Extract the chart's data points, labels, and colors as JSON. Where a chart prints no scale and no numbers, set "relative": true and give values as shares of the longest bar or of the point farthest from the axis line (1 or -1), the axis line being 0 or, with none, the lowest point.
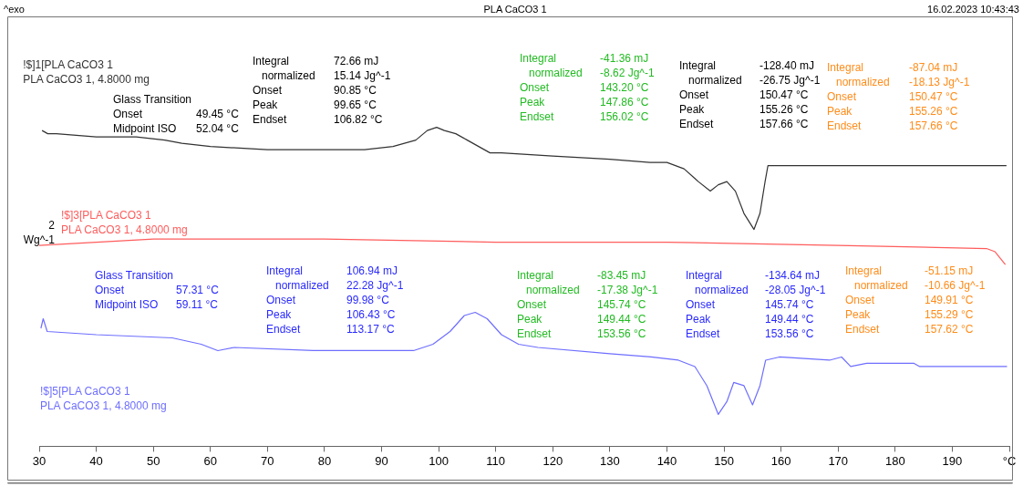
{
  "chart_data": {
    "type": "line",
    "title": "PLA CaCO3 1",
    "ylabel": "2 Wg^-1",
    "relative": true,
    "xlim": [
      30,
      200
    ],
    "xticks": [
      30,
      40,
      50,
      60,
      70,
      80,
      90,
      100,
      110,
      120,
      130,
      140,
      150,
      160,
      170,
      180,
      190,
      {
        "value": 200,
        "label": "°C"
      }
    ],
    "annotations": [
      "^exo",
      "16.02.2023 10:43:43",
      "Glass Transition",
      "Onset",
      "49.45 °C",
      "Midpoint ISO",
      "52.04 °C",
      "Integral",
      "72.66 mJ",
      "normalized",
      "15.14 Jg^-1",
      "Onset",
      "90.85 °C",
      "Peak",
      "99.65 °C",
      "Endset",
      "106.82 °C",
      "Integral",
      "-41.36 mJ",
      "normalized",
      "-8.62 Jg^-1",
      "Onset",
      "143.20 °C",
      "Peak",
      "147.86 °C",
      "Endset",
      "156.02 °C",
      "Integral",
      "-128.40 mJ",
      "normalized",
      "-26.75 Jg^-1",
      "Onset",
      "150.47 °C",
      "Peak",
      "155.26 °C",
      "Endset",
      "157.66 °C",
      "Integral",
      "-87.04 mJ",
      "normalized",
      "-18.13 Jg^-1",
      "Onset",
      "150.47 °C",
      "Peak",
      "155.26 °C",
      "Endset",
      "157.66 °C",
      "Glass Transition",
      "Onset",
      "57.31 °C",
      "Midpoint ISO",
      "59.11 °C",
      "Integral",
      "106.94 mJ",
      "normalized",
      "22.28 Jg^-1",
      "Onset",
      "99.98 °C",
      "Peak",
      "106.43 °C",
      "Endset",
      "113.17 °C",
      "Integral",
      "-83.45 mJ",
      "normalized",
      "-17.38 Jg^-1",
      "Onset",
      "145.74 °C",
      "Peak",
      "149.44 °C",
      "Endset",
      "153.56 °C",
      "Integral",
      "-134.64 mJ",
      "normalized",
      "-28.05 Jg^-1",
      "Onset",
      "145.74 °C",
      "Peak",
      "149.44 °C",
      "Endset",
      "153.56 °C",
      "Integral",
      "-51.15 mJ",
      "normalized",
      "-10.66 Jg^-1",
      "Onset",
      "149.91 °C",
      "Peak",
      "155.29 °C",
      "Endset",
      "157.62 °C"
    ],
    "series": [
      {
        "name": "!$]1[PLA CaCO3 1\nPLA CaCO3 1, 4.8000 mg",
        "color": "#333333",
        "x": [
          30.5,
          31.5,
          33,
          40,
          47,
          52,
          55,
          60,
          70,
          80,
          87,
          92,
          96,
          98,
          99.65,
          101,
          103,
          105,
          107,
          109,
          111,
          120,
          130,
          137,
          140,
          143,
          145.5,
          147.6,
          149,
          150.5,
          152,
          153.5,
          155.26,
          156.3,
          157.2,
          157.7,
          160,
          180,
          199.5
        ],
        "values": [
          0.99,
          0.98,
          0.98,
          0.97,
          0.97,
          0.96,
          0.95,
          0.94,
          0.93,
          0.93,
          0.93,
          0.94,
          0.96,
          0.99,
          1.0,
          0.99,
          0.98,
          0.96,
          0.94,
          0.92,
          0.92,
          0.91,
          0.9,
          0.89,
          0.89,
          0.87,
          0.83,
          0.8,
          0.82,
          0.83,
          0.8,
          0.73,
          0.68,
          0.73,
          0.83,
          0.88,
          0.88,
          0.88,
          0.88
        ]
      },
      {
        "name": "!$]3[PLA CaCO3 1\nPLA CaCO3 1, 4.8000 mg",
        "color": "#ff5c5c",
        "x": [
          30,
          50,
          80,
          110,
          140,
          170,
          196,
          197.5,
          199.3
        ],
        "values": [
          0.63,
          0.65,
          0.65,
          0.64,
          0.64,
          0.63,
          0.62,
          0.61,
          0.57
        ]
      },
      {
        "name": "!$]5[PLA CaCO3 1\nPLA CaCO3 1, 4.8000 mg",
        "color": "#6e6eff",
        "x": [
          30.3,
          30.7,
          31.4,
          40,
          53.3,
          58.4,
          61.3,
          64.2,
          78,
          95.6,
          99,
          102,
          104.5,
          106.4,
          108.5,
          111,
          114,
          117.4,
          130,
          137.2,
          142,
          144.9,
          147,
          149,
          150.5,
          151.7,
          153.5,
          155,
          156.3,
          157.3,
          159.7,
          168.5,
          170.6,
          172.2,
          175,
          183.3,
          184.3,
          198.2,
          199.6
        ],
        "values": [
          0.37,
          0.4,
          0.36,
          0.35,
          0.34,
          0.32,
          0.3,
          0.31,
          0.3,
          0.3,
          0.32,
          0.36,
          0.41,
          0.42,
          0.4,
          0.35,
          0.32,
          0.31,
          0.29,
          0.28,
          0.27,
          0.25,
          0.19,
          0.1,
          0.14,
          0.2,
          0.19,
          0.13,
          0.19,
          0.27,
          0.28,
          0.27,
          0.28,
          0.25,
          0.26,
          0.26,
          0.25,
          0.25,
          0.25
        ]
      }
    ]
  }
}
